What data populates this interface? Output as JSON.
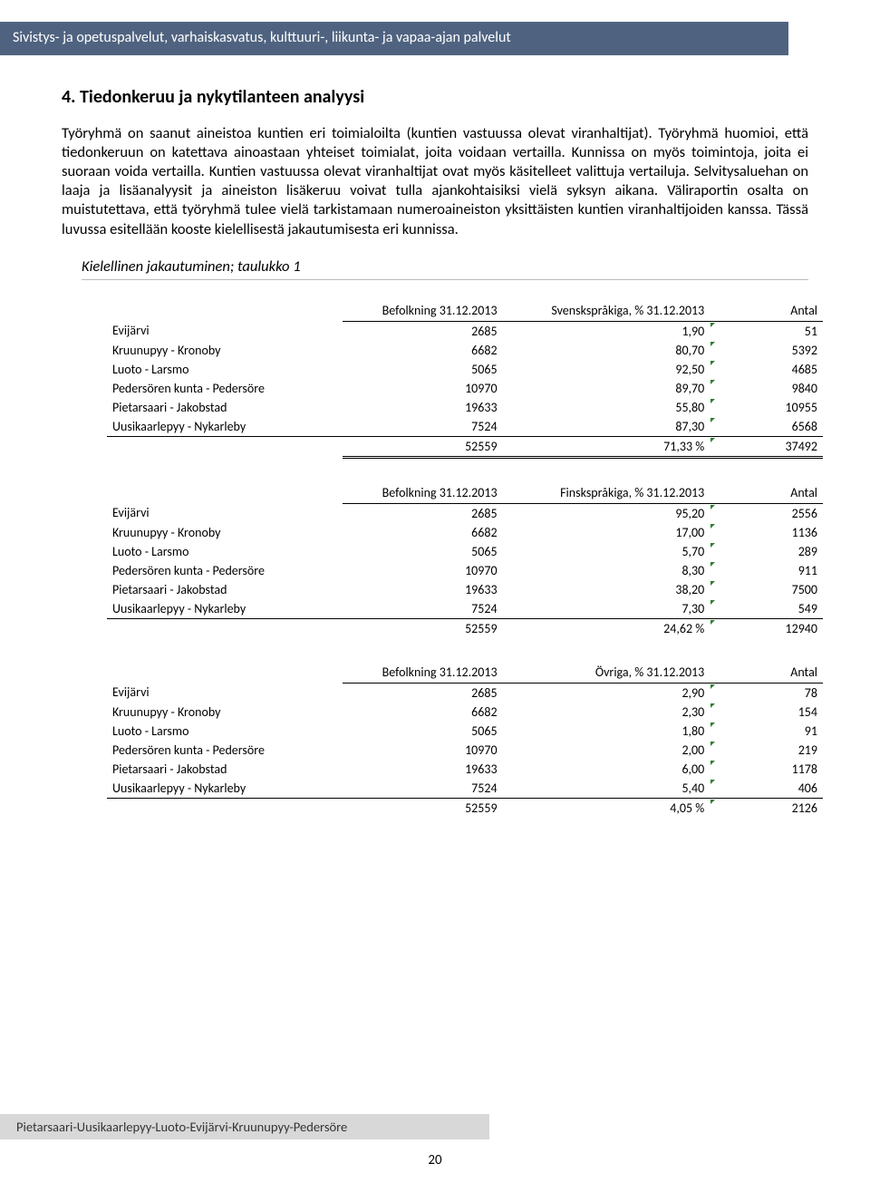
{
  "header": "Sivistys- ja opetuspalvelut, varhaiskasvatus, kulttuuri-, liikunta- ja vapaa-ajan palvelut",
  "section_title": "4. Tiedonkeruu ja nykytilanteen analyysi",
  "paragraph": "Työryhmä on saanut aineistoa kuntien eri toimialoilta (kuntien vastuussa olevat viranhaltijat). Työryhmä huomioi, että tiedonkeruun on katettava ainoastaan yhteiset toimialat, joita voidaan vertailla. Kunnissa on myös toimintoja, joita ei suoraan voida vertailla. Kuntien vastuussa olevat viranhaltijat ovat myös käsitelleet valittuja vertailuja. Selvitysaluehan on laaja ja lisäanalyysit ja aineiston lisäkeruu voivat tulla ajankohtaisiksi vielä syksyn aikana. Väliraportin osalta on muistutettava, että työryhmä tulee vielä tarkistamaan numeroaineiston yksittäisten kuntien viranhaltijoiden kanssa. Tässä luvussa esitellään kooste kielellisestä jakautumisesta eri kunnissa.",
  "table_caption": "Kielellinen jakautuminen; taulukko 1",
  "col_headers": {
    "pop": "Befolkning 31.12.2013",
    "sv": "Svenskspråkiga, % 31.12.2013",
    "fi": "Finskspråkiga, % 31.12.2013",
    "ov": "Övriga, % 31.12.2013",
    "antal": "Antal"
  },
  "row_labels": [
    "Evijärvi",
    "Kruunupyy - Kronoby",
    "Luoto - Larsmo",
    "Pedersören kunta - Pedersöre",
    "Pietarsaari - Jakobstad",
    "Uusikaarlepyy - Nykarleby"
  ],
  "tables": {
    "sv": {
      "rows": [
        [
          "2685",
          "1,90",
          "51"
        ],
        [
          "6682",
          "80,70",
          "5392"
        ],
        [
          "5065",
          "92,50",
          "4685"
        ],
        [
          "10970",
          "89,70",
          "9840"
        ],
        [
          "19633",
          "55,80",
          "10955"
        ],
        [
          "7524",
          "87,30",
          "6568"
        ]
      ],
      "totals": [
        "52559",
        "71,33 %",
        "37492"
      ]
    },
    "fi": {
      "rows": [
        [
          "2685",
          "95,20",
          "2556"
        ],
        [
          "6682",
          "17,00",
          "1136"
        ],
        [
          "5065",
          "5,70",
          "289"
        ],
        [
          "10970",
          "8,30",
          "911"
        ],
        [
          "19633",
          "38,20",
          "7500"
        ],
        [
          "7524",
          "7,30",
          "549"
        ]
      ],
      "totals": [
        "52559",
        "24,62 %",
        "12940"
      ]
    },
    "ov": {
      "rows": [
        [
          "2685",
          "2,90",
          "78"
        ],
        [
          "6682",
          "2,30",
          "154"
        ],
        [
          "5065",
          "1,80",
          "91"
        ],
        [
          "10970",
          "2,00",
          "219"
        ],
        [
          "19633",
          "6,00",
          "1178"
        ],
        [
          "7524",
          "5,40",
          "406"
        ]
      ],
      "totals": [
        "52559",
        "4,05 %",
        "2126"
      ]
    }
  },
  "footer": "Pietarsaari-Uusikaarlepyy-Luoto-Evijärvi-Kruunupyy-Pedersöre",
  "page_number": "20"
}
